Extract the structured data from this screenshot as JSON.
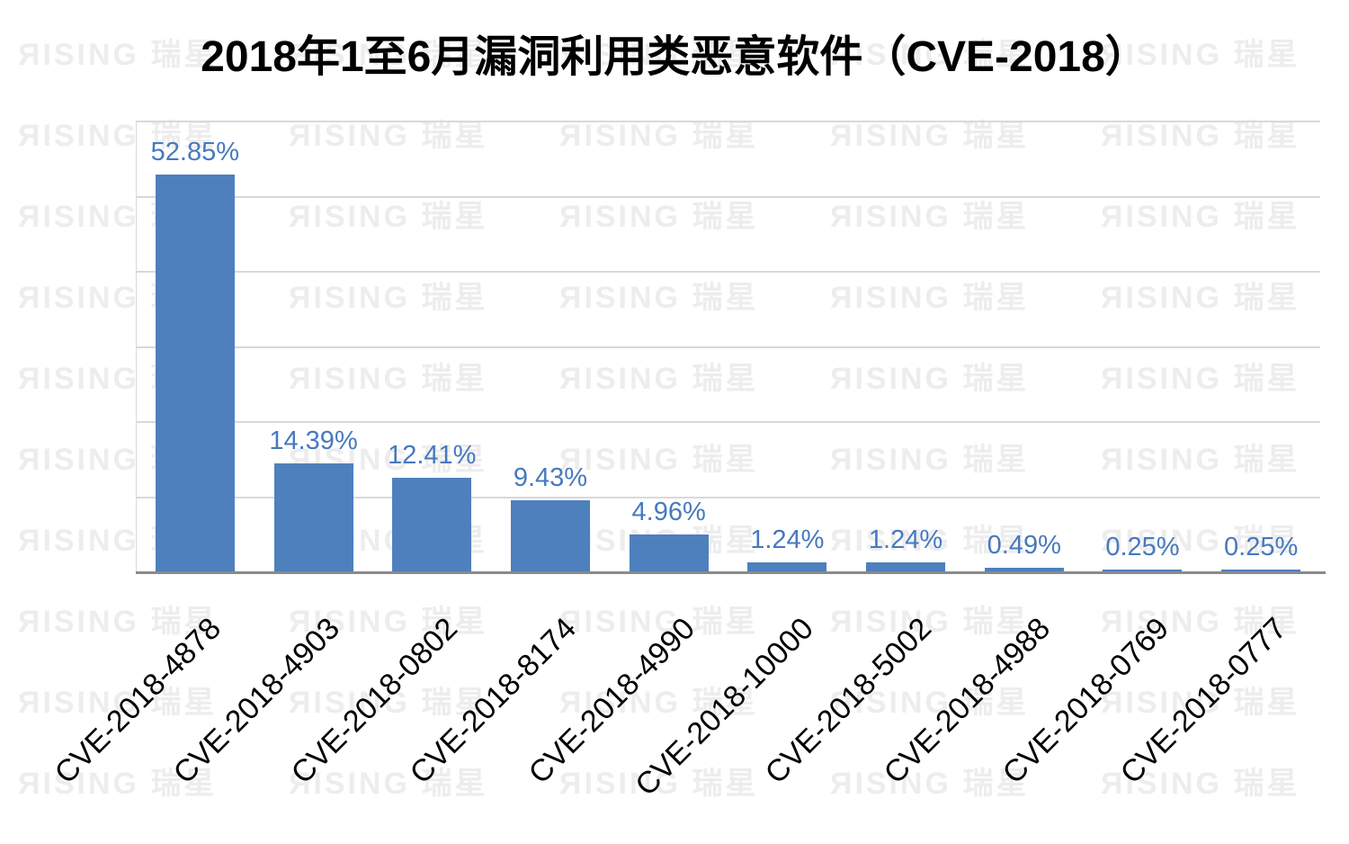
{
  "watermark": {
    "text": "ЯISING 瑞星",
    "color": "#ededed"
  },
  "chart_data": {
    "type": "bar",
    "title": "2018年1至6月漏洞利用类恶意软件（CVE-2018）",
    "categories": [
      "CVE-2018-4878",
      "CVE-2018-4903",
      "CVE-2018-0802",
      "CVE-2018-8174",
      "CVE-2018-4990",
      "CVE-2018-10000",
      "CVE-2018-5002",
      "CVE-2018-4988",
      "CVE-2018-0769",
      "CVE-2018-0777"
    ],
    "values": [
      52.85,
      14.39,
      12.41,
      9.43,
      4.96,
      1.24,
      1.24,
      0.49,
      0.25,
      0.25
    ],
    "labels": [
      "52.85%",
      "14.39%",
      "12.41%",
      "9.43%",
      "4.96%",
      "1.24%",
      "1.24%",
      "0.49%",
      "0.25%",
      "0.25%"
    ],
    "xlabel": "",
    "ylabel": "",
    "ylim": [
      0,
      60
    ],
    "gridline_step": 10,
    "grid": "horizontal",
    "legend": "none",
    "bar_color": "#4e80bd",
    "value_label_color": "#4779be",
    "gridline_color": "#d9d9d9",
    "axis_line_color": "#8a8a8a"
  }
}
